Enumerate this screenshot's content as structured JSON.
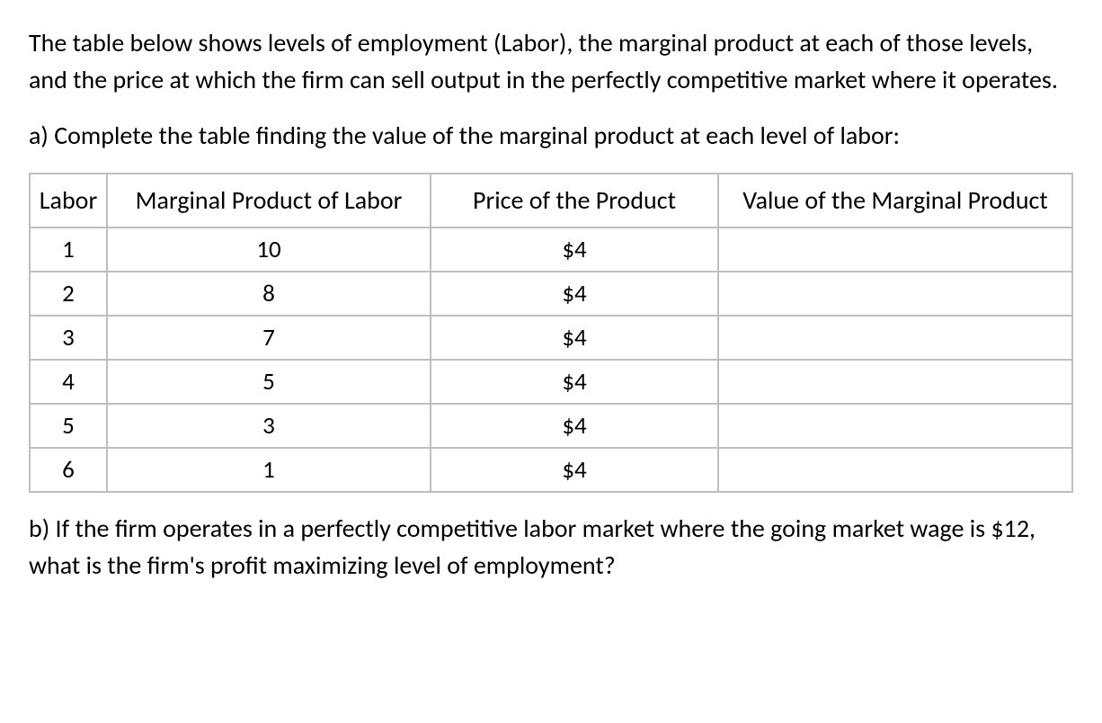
{
  "intro": "The table below shows levels of employment (Labor), the marginal product at each of those levels, and the price at which the firm can sell output in the perfectly competitive market where it operates.",
  "question_a": "a) Complete the table finding the value of the marginal product at each level of labor:",
  "table": {
    "headers": {
      "labor": "Labor",
      "mpl": "Marginal Product of Labor",
      "price": "Price of the Product",
      "vmp": "Value of the Marginal Product"
    },
    "rows": [
      {
        "labor": "1",
        "mpl": "10",
        "price": "$4",
        "vmp": ""
      },
      {
        "labor": "2",
        "mpl": "8",
        "price": "$4",
        "vmp": ""
      },
      {
        "labor": "3",
        "mpl": "7",
        "price": "$4",
        "vmp": ""
      },
      {
        "labor": "4",
        "mpl": "5",
        "price": "$4",
        "vmp": ""
      },
      {
        "labor": "5",
        "mpl": "3",
        "price": "$4",
        "vmp": ""
      },
      {
        "labor": "6",
        "mpl": "1",
        "price": "$4",
        "vmp": ""
      }
    ]
  },
  "question_b": "b) If the firm operates in a perfectly competitive labor market where the going market wage is $12, what is the firm's profit maximizing level of employment?",
  "style": {
    "text_color": "#000000",
    "background_color": "#ffffff",
    "border_color": "#bfbfbf",
    "body_fontsize": 28,
    "cell_fontsize": 27
  }
}
